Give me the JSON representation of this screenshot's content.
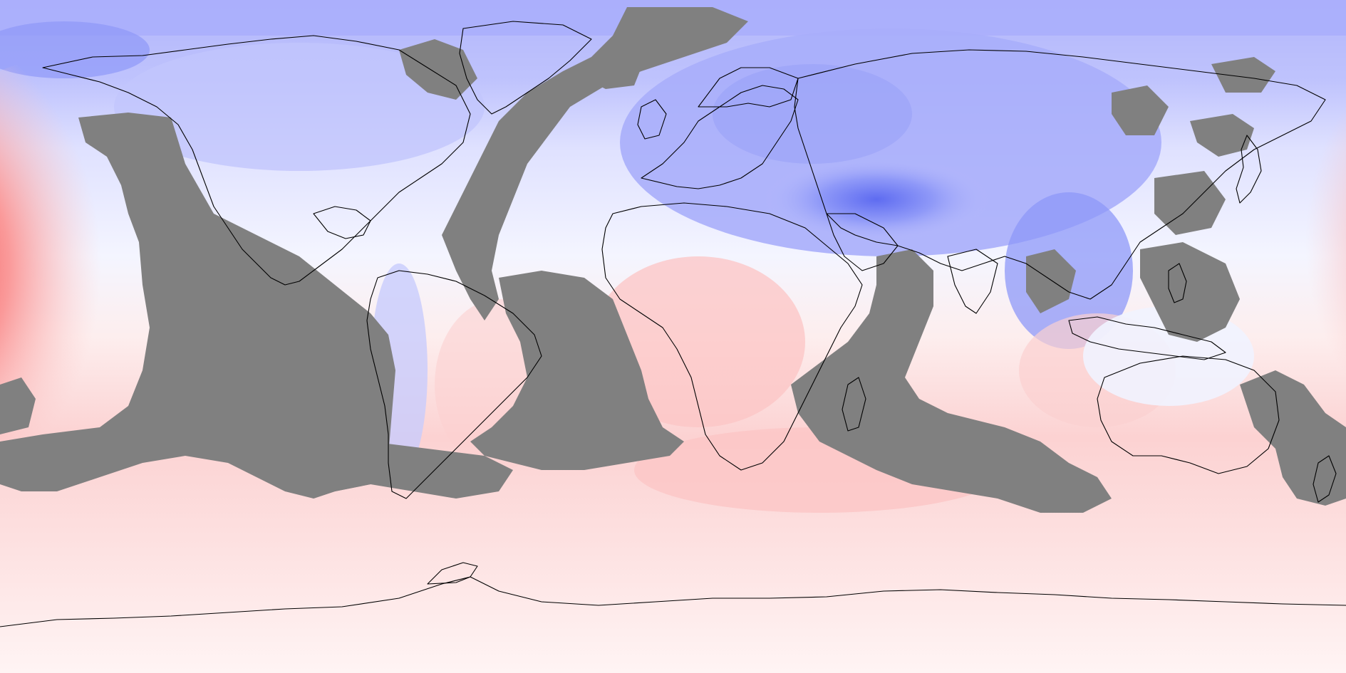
{
  "map": {
    "projection": "equirectangular",
    "colors": {
      "no_data": "#808080",
      "coastline": "#000000",
      "cold_strong": "#5a68f0",
      "cold_mid": "#8e98f8",
      "cold_light": "#b8bcfc",
      "cold_pale": "#dadcff",
      "neutral": "#f2f4ff",
      "warm_pale": "#fde6e6",
      "warm_light": "#fccaca",
      "warm_mid": "#fa9a9a",
      "warm_strong": "#f45a5a",
      "warm_core": "#f03c3c"
    },
    "layers": [
      "anomaly-field",
      "no-data-mask",
      "coastlines"
    ]
  }
}
